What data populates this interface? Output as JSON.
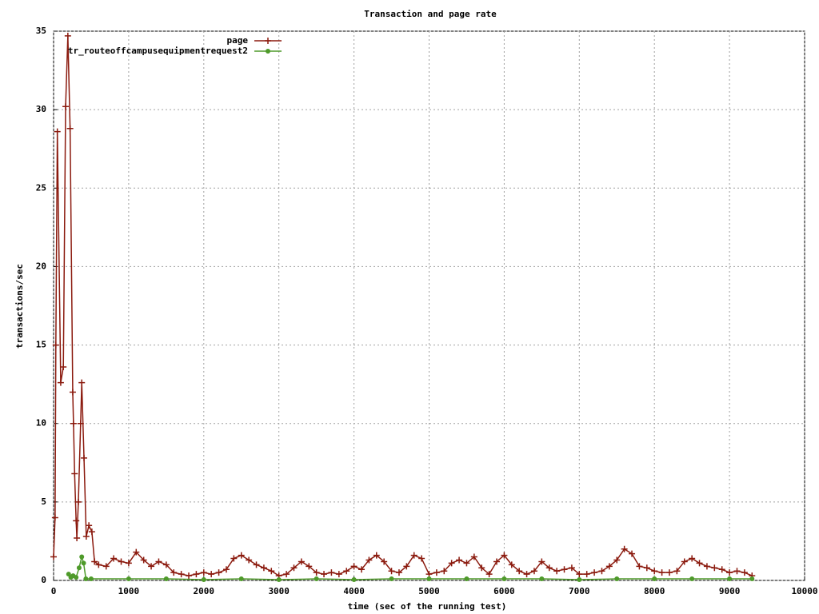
{
  "chart_data": {
    "type": "line",
    "title": "Transaction and page rate",
    "x_label": "time (sec of the running test)",
    "y_label": "transactions/sec",
    "xlim": [
      0,
      10000
    ],
    "xticks": [
      0,
      1000,
      2000,
      3000,
      4000,
      5000,
      6000,
      7000,
      8000,
      9000,
      10000
    ],
    "ylim": [
      0,
      35
    ],
    "yticks": [
      0,
      5,
      10,
      15,
      20,
      25,
      30,
      35
    ],
    "grid": true,
    "legend": "top-left",
    "series": [
      {
        "name": "page",
        "color": "#8b1a0e",
        "marker": "plus",
        "x": [
          0,
          20,
          30,
          50,
          95,
          130,
          160,
          190,
          220,
          255,
          265,
          280,
          300,
          310,
          330,
          360,
          375,
          405,
          435,
          470,
          510,
          545,
          600,
          700,
          800,
          900,
          1000,
          1100,
          1200,
          1300,
          1400,
          1500,
          1600,
          1700,
          1800,
          1900,
          2000,
          2100,
          2200,
          2300,
          2400,
          2500,
          2600,
          2700,
          2800,
          2900,
          3000,
          3100,
          3200,
          3300,
          3400,
          3500,
          3600,
          3700,
          3800,
          3900,
          4000,
          4100,
          4200,
          4300,
          4400,
          4500,
          4600,
          4700,
          4800,
          4900,
          5000,
          5100,
          5200,
          5300,
          5400,
          5500,
          5600,
          5700,
          5800,
          5900,
          6000,
          6100,
          6200,
          6300,
          6400,
          6500,
          6600,
          6700,
          6800,
          6900,
          7000,
          7100,
          7200,
          7300,
          7400,
          7500,
          7600,
          7700,
          7800,
          7900,
          8000,
          8100,
          8200,
          8300,
          8400,
          8500,
          8600,
          8700,
          8800,
          8900,
          9000,
          9100,
          9200,
          9300
        ],
        "values": [
          1.5,
          4,
          15,
          28.6,
          12.6,
          13.6,
          30.2,
          34.7,
          28.8,
          12,
          10,
          6.8,
          3.8,
          2.7,
          5,
          10,
          12.6,
          7.8,
          2.8,
          3.5,
          3.1,
          1.2,
          1.0,
          0.9,
          1.4,
          1.2,
          1.1,
          1.8,
          1.3,
          0.9,
          1.2,
          1.0,
          0.5,
          0.4,
          0.3,
          0.4,
          0.5,
          0.4,
          0.5,
          0.7,
          1.4,
          1.6,
          1.3,
          1.0,
          0.8,
          0.6,
          0.3,
          0.4,
          0.8,
          1.2,
          0.9,
          0.5,
          0.4,
          0.5,
          0.4,
          0.6,
          0.9,
          0.7,
          1.3,
          1.6,
          1.2,
          0.6,
          0.5,
          0.9,
          1.6,
          1.4,
          0.4,
          0.5,
          0.6,
          1.1,
          1.3,
          1.1,
          1.5,
          0.8,
          0.4,
          1.2,
          1.6,
          1.0,
          0.6,
          0.4,
          0.6,
          1.2,
          0.8,
          0.6,
          0.7,
          0.8,
          0.4,
          0.4,
          0.5,
          0.6,
          0.9,
          1.3,
          2.0,
          1.7,
          0.9,
          0.8,
          0.6,
          0.5,
          0.5,
          0.6,
          1.2,
          1.4,
          1.1,
          0.9,
          0.8,
          0.7,
          0.5,
          0.6,
          0.5,
          0.3
        ]
      },
      {
        "name": "tr_routeoffcampusequipmentrequest2",
        "color": "#4e9a2a",
        "marker": "dot",
        "x": [
          200,
          230,
          260,
          300,
          340,
          375,
          400,
          430,
          500,
          1000,
          1500,
          2000,
          2500,
          3000,
          3500,
          4000,
          4500,
          5000,
          5500,
          6000,
          6500,
          7000,
          7500,
          8000,
          8500,
          9000,
          9300
        ],
        "values": [
          0.4,
          0.2,
          0.3,
          0.2,
          0.8,
          1.5,
          1.1,
          0.1,
          0.1,
          0.1,
          0.1,
          0.05,
          0.1,
          0.05,
          0.1,
          0.05,
          0.1,
          0.1,
          0.1,
          0.1,
          0.1,
          0.05,
          0.1,
          0.1,
          0.1,
          0.1,
          0.1
        ]
      }
    ]
  }
}
